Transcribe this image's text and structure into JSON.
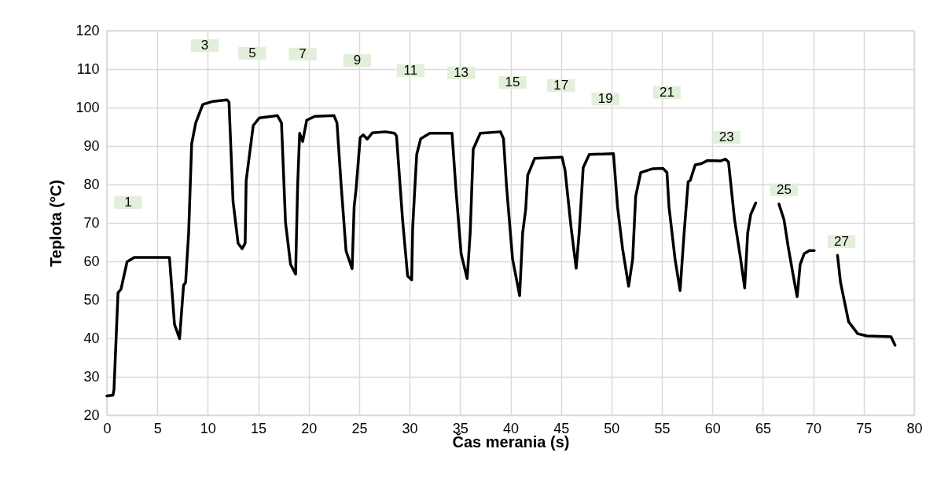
{
  "chart_data": {
    "type": "line",
    "xlabel": "Čas merania (s)",
    "ylabel": "Teplota (°C)",
    "xlim": [
      0,
      80
    ],
    "xticks": [
      0,
      5,
      10,
      15,
      20,
      25,
      30,
      35,
      40,
      45,
      50,
      55,
      60,
      65,
      70,
      75,
      80
    ],
    "ylim": [
      20,
      120
    ],
    "yticks": [
      20,
      30,
      40,
      50,
      60,
      70,
      80,
      90,
      100,
      110,
      120
    ],
    "grid": true,
    "legend": false,
    "marker": "none",
    "line_style": "solid",
    "annotations": [
      {
        "text": "1",
        "x": 2.1,
        "y": 75.3
      },
      {
        "text": "3",
        "x": 9.7,
        "y": 116.1
      },
      {
        "text": "5",
        "x": 14.4,
        "y": 114.1
      },
      {
        "text": "7",
        "x": 19.4,
        "y": 113.9
      },
      {
        "text": "9",
        "x": 24.8,
        "y": 112.2
      },
      {
        "text": "11",
        "x": 30.1,
        "y": 109.6
      },
      {
        "text": "13",
        "x": 35.1,
        "y": 109.0
      },
      {
        "text": "15",
        "x": 40.2,
        "y": 106.5
      },
      {
        "text": "17",
        "x": 45.0,
        "y": 105.7
      },
      {
        "text": "19",
        "x": 49.4,
        "y": 102.2
      },
      {
        "text": "21",
        "x": 55.5,
        "y": 103.9
      },
      {
        "text": "23",
        "x": 61.4,
        "y": 92.2
      },
      {
        "text": "25",
        "x": 67.1,
        "y": 78.6
      },
      {
        "text": "27",
        "x": 72.8,
        "y": 65.1
      }
    ],
    "series": [
      {
        "color": "#000000",
        "x": [
          0,
          0.6,
          0.7,
          1.1,
          1.4,
          1.6,
          2.0,
          2.7,
          6.2,
          6.7,
          7.2,
          7.6,
          7.8,
          8.1,
          8.4,
          8.8,
          9.5,
          10.5,
          11.9,
          12.1,
          12.5,
          13.0,
          13.4,
          13.7,
          13.8,
          14.2,
          14.5,
          15.1,
          16.9,
          17.3,
          17.7,
          18.2,
          18.7,
          18.9,
          19.1,
          19.4,
          19.8,
          20.6,
          22.5,
          22.8,
          23.2,
          23.7,
          24.3,
          24.5,
          24.7,
          25.1,
          25.4,
          25.8,
          26.3,
          27.6,
          28.5,
          28.7,
          29.3,
          29.8,
          30.2,
          30.3,
          30.7,
          31.1,
          32.0,
          34.2,
          34.6,
          35.1,
          35.7,
          36.0,
          36.3,
          37.0,
          39.0,
          39.3,
          39.6,
          40.2,
          40.9,
          41.2,
          41.5,
          41.7,
          42.4,
          45.1,
          45.4,
          46.0,
          46.5,
          46.8,
          47.2,
          47.8,
          50.2,
          50.6,
          51.1,
          51.7,
          52.1,
          52.4,
          52.9,
          54.1,
          55.1,
          55.5,
          55.7,
          56.3,
          56.8,
          57.2,
          57.6,
          57.8,
          58.3,
          58.9,
          59.5,
          60.8,
          61.3,
          61.6,
          62.2,
          62.8,
          63.2,
          63.5,
          63.8,
          64.3,
          65.5,
          66.6,
          67.1,
          67.5,
          68.0,
          68.4,
          68.7,
          69.1,
          69.6,
          70.1,
          71.2,
          72.4,
          72.7,
          73.5,
          74.4,
          75.3,
          77.7,
          78.1
        ],
        "values": [
          25.0,
          25.2,
          26.6,
          51.8,
          52.8,
          55.2,
          59.9,
          61.0,
          61.0,
          43.6,
          39.9,
          53.8,
          54.5,
          67.4,
          90.6,
          96.0,
          100.8,
          101.6,
          102.0,
          101.4,
          75.6,
          64.7,
          63.3,
          64.7,
          81.0,
          89.2,
          95.3,
          97.3,
          97.9,
          96.0,
          70.1,
          59.2,
          56.7,
          79.7,
          93.3,
          91.2,
          96.7,
          97.7,
          97.9,
          96.0,
          80.3,
          62.7,
          58.1,
          74.2,
          79.0,
          92.2,
          92.9,
          91.8,
          93.4,
          93.7,
          93.3,
          92.6,
          70.8,
          56.2,
          55.2,
          68.8,
          87.8,
          91.9,
          93.3,
          93.3,
          78.3,
          62.0,
          55.5,
          67.4,
          89.2,
          93.3,
          93.7,
          91.9,
          79.6,
          60.6,
          51.1,
          67.4,
          73.5,
          82.4,
          86.8,
          87.1,
          83.7,
          68.8,
          58.2,
          67.4,
          84.4,
          87.8,
          88.0,
          74.2,
          63.3,
          53.5,
          60.6,
          76.9,
          83.1,
          84.1,
          84.2,
          83.1,
          74.2,
          60.6,
          52.4,
          67.4,
          80.7,
          81.0,
          85.1,
          85.4,
          86.2,
          86.1,
          86.6,
          85.8,
          70.8,
          60.6,
          53.1,
          67.4,
          72.2,
          75.2,
          null,
          74.9,
          70.8,
          64.0,
          56.5,
          50.8,
          59.2,
          62.0,
          62.8,
          62.8,
          null,
          61.6,
          54.5,
          44.3,
          41.2,
          40.6,
          40.4,
          38.2
        ]
      }
    ]
  }
}
